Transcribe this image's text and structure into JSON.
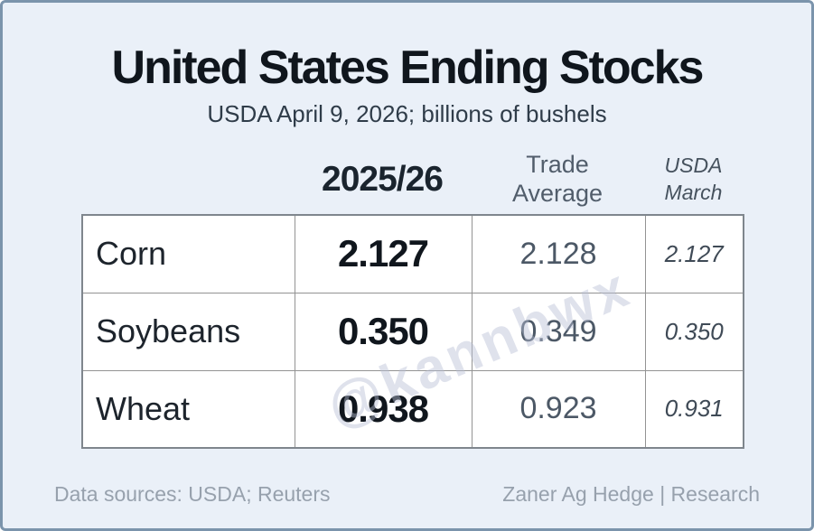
{
  "chart_data": {
    "type": "table",
    "title": "United States Ending Stocks",
    "subtitle": "USDA April 9, 2026; billions of bushels",
    "unit": "billions of bushels",
    "columns": [
      "2025/26",
      "Trade Average",
      "USDA March"
    ],
    "rows": [
      {
        "commodity": "Corn",
        "current": "2.127",
        "trade_average": "2.128",
        "usda_march": "2.127"
      },
      {
        "commodity": "Soybeans",
        "current": "0.350",
        "trade_average": "0.349",
        "usda_march": "0.350"
      },
      {
        "commodity": "Wheat",
        "current": "0.938",
        "trade_average": "0.923",
        "usda_march": "0.931"
      }
    ]
  },
  "header_display": {
    "year": "2025/26",
    "trade_line1": "Trade",
    "trade_line2": "Average",
    "march_line1": "USDA",
    "march_line2": "March"
  },
  "watermark": "@kannbwx",
  "footer": {
    "left": "Data sources: USDA; Reuters",
    "right": "Zaner Ag Hedge | Research"
  },
  "colors": {
    "page_bg": "#eaf0f8",
    "frame_border": "#7b94ac",
    "cell_bg": "#ffffff",
    "highlight_col_bg": "#dee5ef",
    "grid_line": "#939393",
    "title_text": "#10161d",
    "subtitle_text": "#2f3c49",
    "muted_text": "#515d6b",
    "footer_text": "#97a1ad",
    "watermark_text": "#b9bed4"
  }
}
